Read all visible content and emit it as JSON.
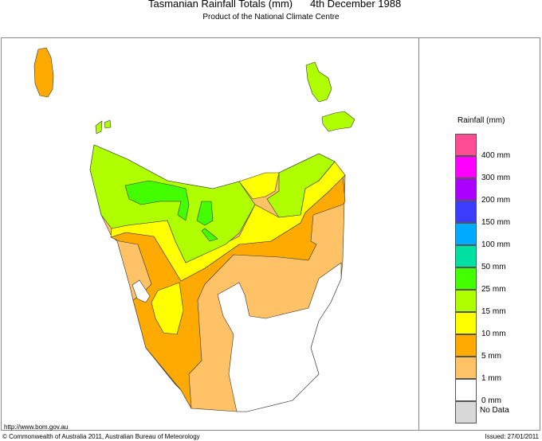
{
  "header": {
    "title": "Tasmanian Rainfall Totals (mm)",
    "date": "4th December 1988",
    "subtitle": "Product of the National Climate Centre"
  },
  "legend": {
    "title": "Rainfall (mm)",
    "colors": [
      "#ff4d94",
      "#ff00ff",
      "#aa00ff",
      "#3c3cff",
      "#00aaff",
      "#00e0a0",
      "#44ff00",
      "#b0ff00",
      "#ffff00",
      "#ffaa00",
      "#ffc266",
      "#ffffff",
      "#d8d8d8"
    ],
    "labels": [
      "400 mm",
      "300 mm",
      "200 mm",
      "150 mm",
      "100 mm",
      "50 mm",
      "25 mm",
      "15 mm",
      "10 mm",
      "5 mm",
      "1 mm",
      "0 mm"
    ],
    "no_data": "No Data"
  },
  "map": {
    "region": "Tasmania",
    "fill_colors": {
      "1-5 mm": "#ffc266",
      "5-10 mm": "#ffaa00",
      "10-15 mm": "#ffff00",
      "15-25 mm": "#b0ff00",
      "25-50 mm": "#44ff00",
      "0-1 mm": "#ffffff"
    }
  },
  "footer": {
    "url": "http://www.bom.gov.au",
    "copyright": "© Commonwealth of Australia 2011, Australian Bureau of Meteorology",
    "issued": "Issued: 27/01/2011"
  }
}
